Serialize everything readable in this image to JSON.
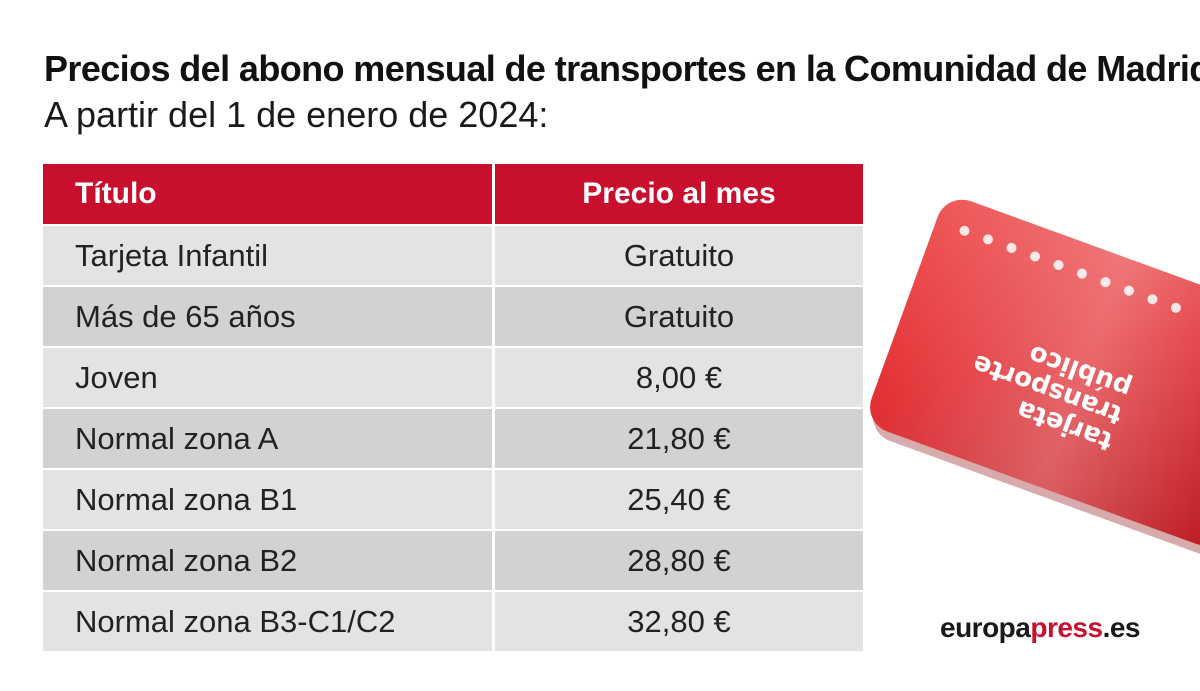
{
  "header": {
    "title": "Precios del abono mensual de transportes en la Comunidad de Madrid",
    "subtitle": "A partir del 1 de enero de 2024:"
  },
  "table": {
    "headers": [
      "Título",
      "Precio al mes"
    ],
    "rows": [
      {
        "title": "Tarjeta Infantil",
        "price": "Gratuito"
      },
      {
        "title": "Más de 65 años",
        "price": "Gratuito"
      },
      {
        "title": "Joven",
        "price": "8,00 €"
      },
      {
        "title": "Normal zona A",
        "price": "21,80 €"
      },
      {
        "title": "Normal zona B1",
        "price": "25,40 €"
      },
      {
        "title": "Normal zona B2",
        "price": "28,80 €"
      },
      {
        "title": "Normal zona B3-C1/C2",
        "price": "32,80 €"
      }
    ]
  },
  "card_image": {
    "text_lines": [
      "tarjeta",
      "transporte",
      "público"
    ],
    "color": "#d9242a"
  },
  "brand": {
    "part1": "europa",
    "part2": "press",
    "part3": ".es"
  },
  "colors": {
    "accent": "#c8102e",
    "row_light": "#e3e3e3",
    "row_dark": "#d2d2d2"
  }
}
